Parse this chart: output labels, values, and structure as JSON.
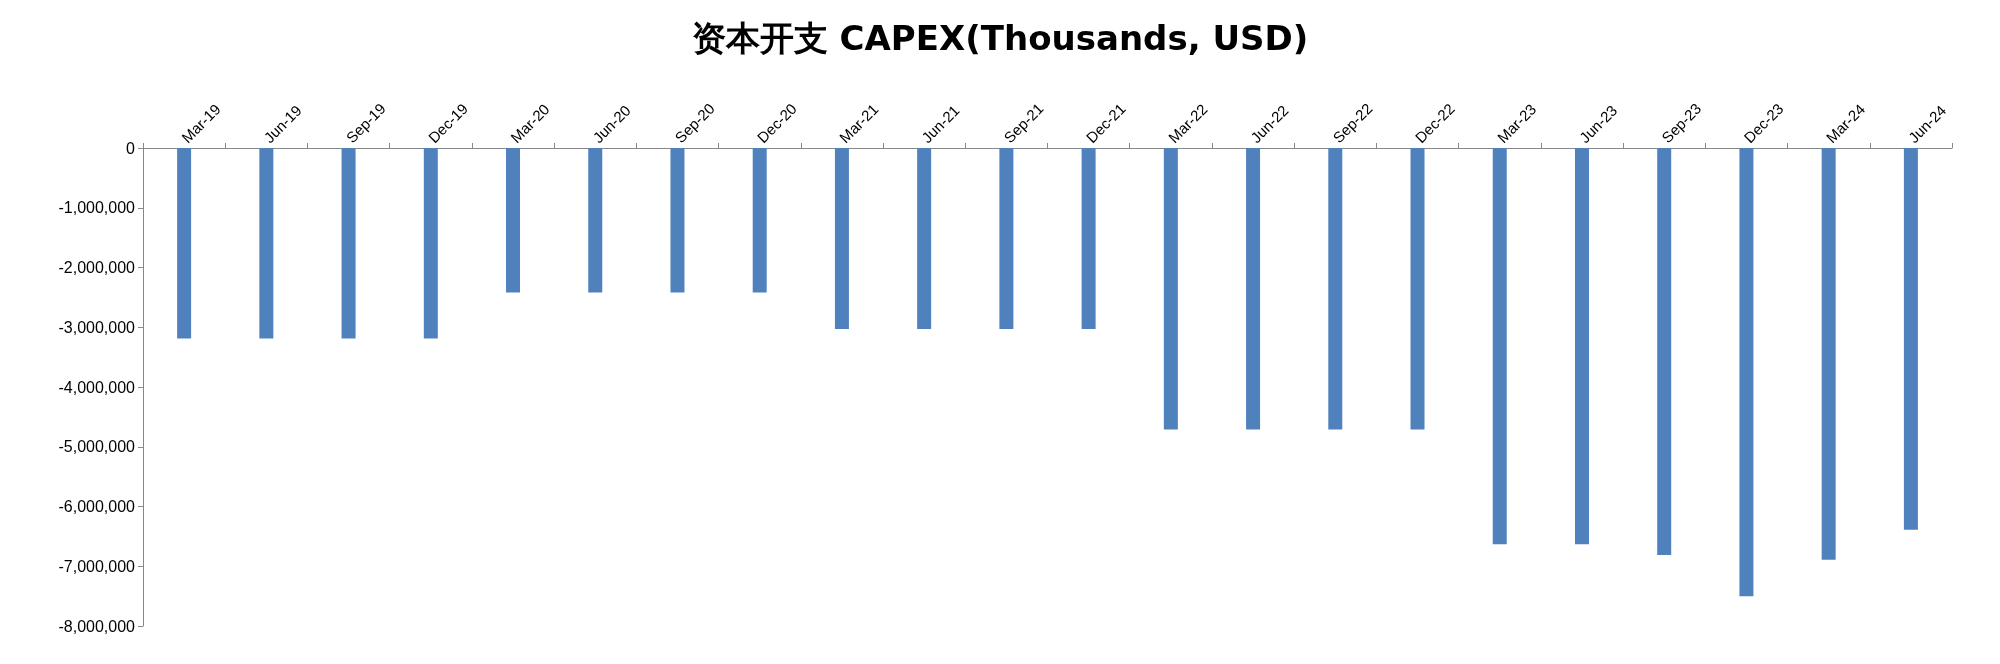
{
  "chart_data": {
    "type": "bar",
    "title": "资本开支 CAPEX(Thousands, USD)",
    "categories": [
      "Mar-19",
      "Jun-19",
      "Sep-19",
      "Dec-19",
      "Mar-20",
      "Jun-20",
      "Sep-20",
      "Dec-20",
      "Mar-21",
      "Jun-21",
      "Sep-21",
      "Dec-21",
      "Mar-22",
      "Jun-22",
      "Sep-22",
      "Dec-22",
      "Mar-23",
      "Jun-23",
      "Sep-23",
      "Dec-23",
      "Mar-24",
      "Jun-24"
    ],
    "values": [
      -3190000,
      -3190000,
      -3190000,
      -3190000,
      -2420000,
      -2420000,
      -2420000,
      -2420000,
      -3030000,
      -3030000,
      -3030000,
      -3030000,
      -4710000,
      -4710000,
      -4710000,
      -4710000,
      -6630000,
      -6630000,
      -6810000,
      -7500000,
      -6890000,
      -6390000
    ],
    "color": "#4f81bd",
    "ylim": [
      -8000000,
      0
    ],
    "yticks": [
      {
        "value": -8000000,
        "label": "-8,000,000"
      },
      {
        "value": -7000000,
        "label": "-7,000,000"
      },
      {
        "value": -6000000,
        "label": "-6,000,000"
      },
      {
        "value": -5000000,
        "label": "-5,000,000"
      },
      {
        "value": -4000000,
        "label": "-4,000,000"
      },
      {
        "value": -3000000,
        "label": "-3,000,000"
      },
      {
        "value": -2000000,
        "label": "-2,000,000"
      },
      {
        "value": -1000000,
        "label": "-1,000,000"
      },
      0
    ],
    "grid": false
  }
}
